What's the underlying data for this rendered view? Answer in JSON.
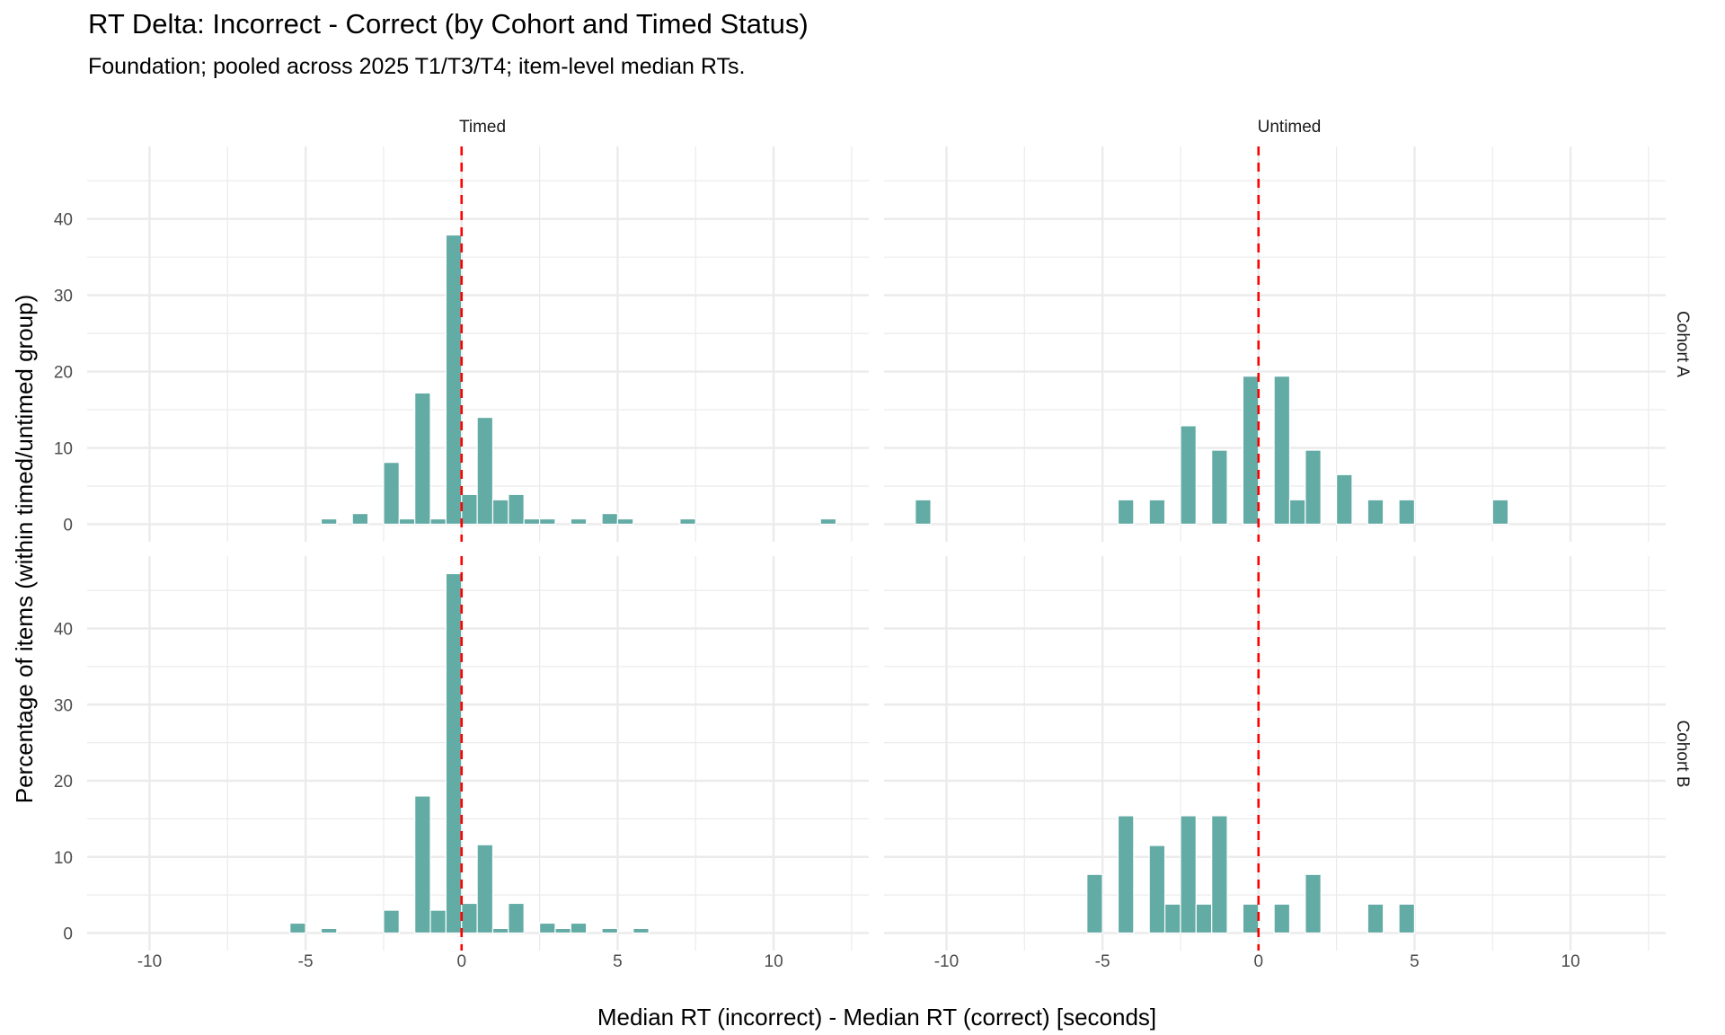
{
  "chart_data": {
    "type": "bar",
    "subtype": "faceted-histogram",
    "title": "RT Delta: Incorrect - Correct (by Cohort and Timed Status)",
    "subtitle": "Foundation; pooled across 2025 T1/T3/T4; item-level median RTs.",
    "xlabel": "Median RT (incorrect) - Median RT (correct) [seconds]",
    "ylabel": "Percentage of items (within timed/untimed group)",
    "bin_width": 0.5,
    "xlim": [
      -12.0,
      13.05
    ],
    "ylim": [
      -2.3,
      49.5
    ],
    "x_ticks": [
      -10,
      -5,
      0,
      5,
      10
    ],
    "x_tick_labels": [
      "-10",
      "-5",
      "0",
      "5",
      "10"
    ],
    "y_ticks": [
      0,
      10,
      20,
      30,
      40
    ],
    "y_tick_labels": [
      "0",
      "10",
      "20",
      "30",
      "40"
    ],
    "reference_line": {
      "x": 0,
      "style": "dashed",
      "color": "#ff0000"
    },
    "bar_color": "#63aba5",
    "grid": true,
    "columns": [
      "Timed",
      "Untimed"
    ],
    "rows": [
      "Cohort A",
      "Cohort B"
    ],
    "panels": [
      {
        "column": "Timed",
        "row": "Cohort A",
        "bin_centers": [
          -4.25,
          -3.25,
          -2.25,
          -1.75,
          -1.25,
          -0.75,
          -0.25,
          0.25,
          0.75,
          1.25,
          1.75,
          2.25,
          2.75,
          3.75,
          4.75,
          5.25,
          7.25,
          11.75
        ],
        "values": [
          0.7,
          1.4,
          8.1,
          0.7,
          17.2,
          0.7,
          37.9,
          3.9,
          14.0,
          3.2,
          3.9,
          0.7,
          0.7,
          0.7,
          1.4,
          0.7,
          0.7,
          0.7
        ]
      },
      {
        "column": "Untimed",
        "row": "Cohort A",
        "bin_centers": [
          -10.75,
          -4.25,
          -3.25,
          -2.25,
          -1.25,
          -0.25,
          0.75,
          1.25,
          1.75,
          2.75,
          3.75,
          4.75,
          7.75
        ],
        "values": [
          3.2,
          3.2,
          3.2,
          12.9,
          9.7,
          19.4,
          19.4,
          3.2,
          9.7,
          6.5,
          3.2,
          3.2,
          3.2
        ]
      },
      {
        "column": "Timed",
        "row": "Cohort B",
        "bin_centers": [
          -5.25,
          -4.25,
          -2.25,
          -1.25,
          -0.75,
          -0.25,
          0.25,
          0.75,
          1.25,
          1.75,
          2.75,
          3.25,
          3.75,
          4.75,
          5.75
        ],
        "values": [
          1.3,
          0.6,
          3.0,
          18.0,
          3.0,
          47.2,
          3.9,
          11.6,
          0.6,
          3.9,
          1.3,
          0.6,
          1.3,
          0.6,
          0.6
        ]
      },
      {
        "column": "Untimed",
        "row": "Cohort B",
        "bin_centers": [
          -5.25,
          -4.25,
          -3.25,
          -2.75,
          -2.25,
          -1.75,
          -1.25,
          -0.25,
          0.75,
          1.75,
          3.75,
          4.75
        ],
        "values": [
          7.7,
          15.4,
          11.5,
          3.8,
          15.4,
          3.8,
          15.4,
          3.8,
          3.8,
          7.7,
          3.8,
          3.8
        ]
      }
    ]
  }
}
